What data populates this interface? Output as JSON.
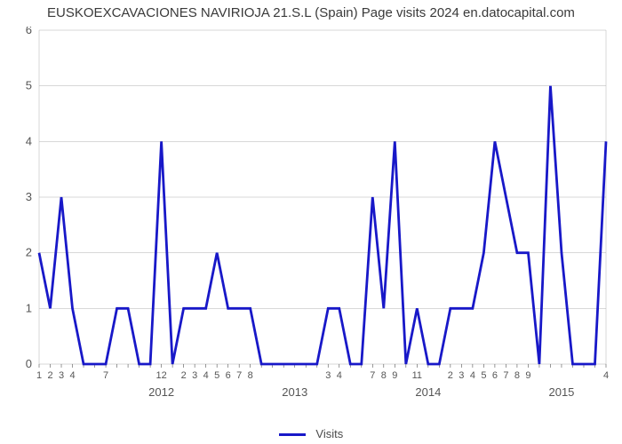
{
  "title": "EUSKOEXCAVACIONES NAVIRIOJA 21.S.L (Spain) Page visits 2024 en.datocapital.com",
  "chart": {
    "type": "line",
    "background_color": "#ffffff",
    "line_color": "#1818c8",
    "line_width": 2.8,
    "grid_color": "#b0b0b0",
    "grid_width": 0.5,
    "axis_color": "#555555",
    "yaxis": {
      "min": 0,
      "max": 6,
      "ticks": [
        0,
        1,
        2,
        3,
        4,
        5,
        6
      ],
      "fontsize": 13,
      "color": "#555555"
    },
    "xaxis": {
      "fontsize": 11,
      "color": "#555555",
      "year_fontsize": 13,
      "month_labels": [
        "1",
        "2",
        "3",
        "4",
        "",
        "",
        "7",
        "",
        "",
        "",
        "",
        "12",
        "",
        "2",
        "3",
        "4",
        "5",
        "6",
        "7",
        "8",
        "",
        "",
        "",
        "",
        "",
        "",
        "3",
        "4",
        "",
        "",
        "7",
        "8",
        "9",
        "",
        "11",
        "",
        "",
        "2",
        "3",
        "4",
        "5",
        "6",
        "7",
        "8",
        "9",
        "",
        "",
        "",
        "",
        "",
        "",
        "4"
      ],
      "year_labels": [
        {
          "at_index": 11,
          "text": "2012"
        },
        {
          "at_index": 23,
          "text": "2013"
        },
        {
          "at_index": 35,
          "text": "2014"
        },
        {
          "at_index": 47,
          "text": "2015"
        }
      ]
    },
    "data": [
      2,
      1,
      3,
      1,
      0,
      0,
      0,
      1,
      1,
      0,
      0,
      4,
      0,
      1,
      1,
      1,
      2,
      1,
      1,
      1,
      0,
      0,
      0,
      0,
      0,
      0,
      1,
      1,
      0,
      0,
      3,
      1,
      4,
      0,
      1,
      0,
      0,
      1,
      1,
      1,
      2,
      4,
      3,
      2,
      2,
      0,
      5,
      2,
      0,
      0,
      0,
      4
    ],
    "color_labels": "#555555"
  },
  "legend": {
    "label": "Visits",
    "swatch_color": "#1818c8"
  }
}
